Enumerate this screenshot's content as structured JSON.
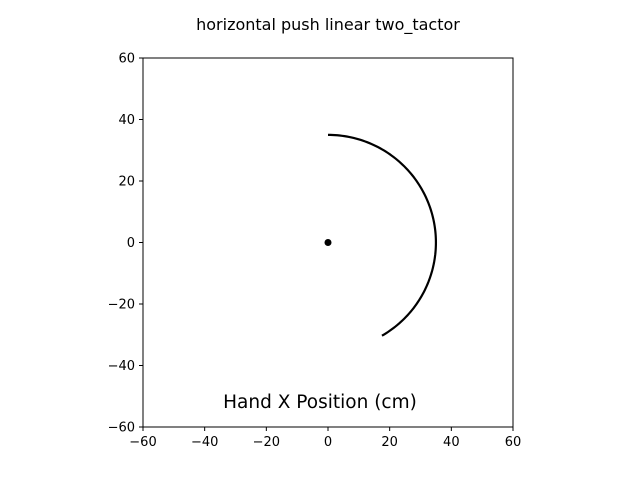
{
  "chart_data": {
    "type": "line",
    "title": "horizontal push linear two_tactor",
    "annotation": "Hand X Position (cm)",
    "xlabel": "",
    "ylabel": "",
    "xlim": [
      -60,
      60
    ],
    "ylim": [
      -60,
      60
    ],
    "xticks": [
      -60,
      -40,
      -20,
      0,
      20,
      40,
      60
    ],
    "yticks": [
      -60,
      -40,
      -20,
      0,
      20,
      40,
      60
    ],
    "xtick_labels": [
      "−60",
      "−40",
      "−20",
      "0",
      "20",
      "40",
      "60"
    ],
    "ytick_labels": [
      "−60",
      "−40",
      "−20",
      "0",
      "20",
      "40",
      "60"
    ],
    "grid": false,
    "series": [
      {
        "kind": "arc",
        "center": [
          0,
          0
        ],
        "radius": 35,
        "start_angle_deg": 90,
        "end_angle_deg": -60,
        "color": "#000000"
      },
      {
        "kind": "point",
        "x": 0,
        "y": 0,
        "color": "#000000"
      }
    ]
  }
}
